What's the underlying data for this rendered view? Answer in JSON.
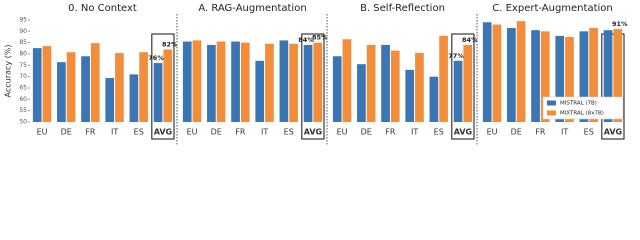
{
  "chart_data": [
    {
      "type": "bar",
      "title": "0. No Context",
      "y_label": "Accuracy (%)",
      "categories": [
        "EU",
        "DE",
        "FR",
        "IT",
        "ES",
        "AVG"
      ],
      "series": [
        {
          "name": "MISTRAL (7B)",
          "color": "#3b75b3",
          "values": [
            82.6,
            76.4,
            79,
            69.4,
            71,
            76
          ],
          "value_labels": [
            null,
            null,
            null,
            null,
            null,
            "76%"
          ]
        },
        {
          "name": "MIXTRAL (8x7B)",
          "color": "#f28e3b",
          "values": [
            83.5,
            80.8,
            84.8,
            80.4,
            80.8,
            82
          ],
          "value_labels": [
            null,
            null,
            null,
            null,
            null,
            "82%"
          ]
        }
      ],
      "ylim": [
        50,
        95
      ],
      "yticks": [
        50,
        55,
        60,
        65,
        70,
        75,
        80,
        85,
        90,
        95
      ]
    },
    {
      "type": "bar",
      "title": "A. RAG-Augmentation",
      "categories": [
        "EU",
        "DE",
        "FR",
        "IT",
        "ES",
        "AVG"
      ],
      "series": [
        {
          "name": "MISTRAL (7B)",
          "color": "#3b75b3",
          "values": [
            85.5,
            84,
            85.5,
            77,
            86,
            84
          ],
          "value_labels": [
            null,
            null,
            null,
            null,
            null,
            "84%"
          ]
        },
        {
          "name": "MIXTRAL (8x7B)",
          "color": "#f28e3b",
          "values": [
            86,
            85.5,
            85,
            84.5,
            84.5,
            85
          ],
          "value_labels": [
            null,
            null,
            null,
            null,
            null,
            "85%"
          ]
        }
      ],
      "ylim": [
        50,
        95
      ]
    },
    {
      "type": "bar",
      "title": "B. Self-Reflection",
      "categories": [
        "EU",
        "DE",
        "FR",
        "IT",
        "ES",
        "AVG"
      ],
      "series": [
        {
          "name": "MISTRAL (7B)",
          "color": "#3b75b3",
          "values": [
            79,
            75.5,
            84,
            73,
            70,
            77
          ],
          "value_labels": [
            null,
            null,
            null,
            null,
            null,
            "77%"
          ]
        },
        {
          "name": "MIXTRAL (8x7B)",
          "color": "#f28e3b",
          "values": [
            86.5,
            84,
            81.5,
            80.5,
            88,
            84
          ],
          "value_labels": [
            null,
            null,
            null,
            null,
            null,
            "84%"
          ]
        }
      ],
      "ylim": [
        50,
        95
      ]
    },
    {
      "type": "bar",
      "title": "C. Expert-Augmentation",
      "legend": "lower right",
      "categories": [
        "EU",
        "DE",
        "FR",
        "IT",
        "ES",
        "AVG"
      ],
      "series": [
        {
          "name": "MISTRAL (7B)",
          "color": "#3b75b3",
          "values": [
            94,
            91.5,
            90.5,
            88,
            90,
            90.5
          ]
        },
        {
          "name": "MIXTRAL (8x7B)",
          "color": "#f28e3b",
          "values": [
            93,
            94.5,
            90,
            87.5,
            91.5,
            91
          ],
          "value_labels": [
            null,
            null,
            null,
            null,
            null,
            "91%"
          ]
        }
      ],
      "ylim": [
        50,
        95
      ]
    }
  ]
}
